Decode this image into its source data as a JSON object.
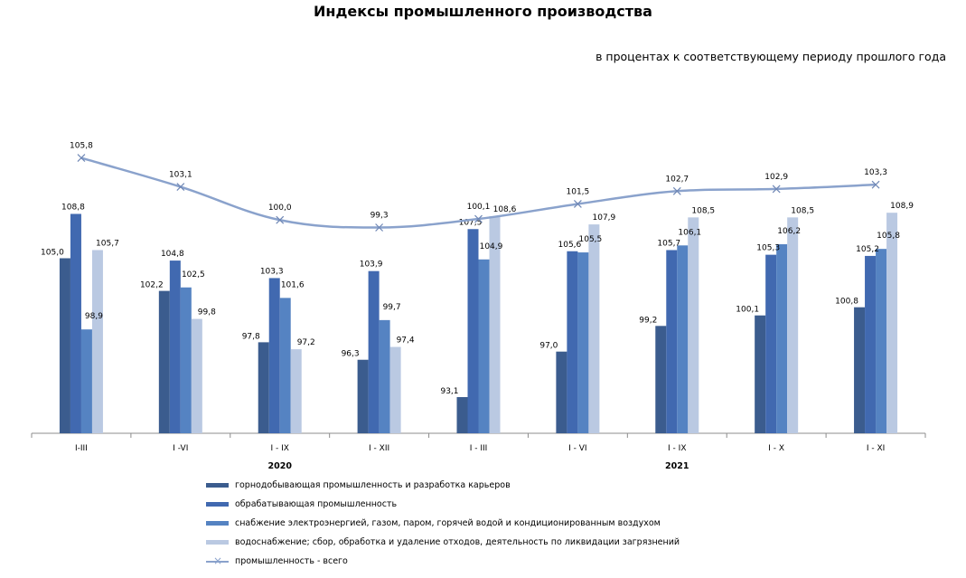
{
  "title": "Индексы промышленного производства",
  "subtitle": "в процентах к соответствующему периоду прошлого года",
  "chart_data": {
    "type": "bar",
    "categories": [
      "I-III",
      "I -VI",
      "I - IX",
      "I - XII",
      "I - III",
      "I - VI",
      "I - IX",
      "I - X",
      "I - XI"
    ],
    "year_labels": [
      {
        "label": "2020",
        "category_index": 2
      },
      {
        "label": "2021",
        "category_index": 6
      }
    ],
    "series": [
      {
        "name": "горнодобывающая промышленность и разработка карьеров",
        "color": "#3b5c8e",
        "values": [
          105.0,
          102.2,
          97.8,
          96.3,
          93.1,
          97.0,
          99.2,
          100.1,
          100.8
        ],
        "labels": [
          "105,0",
          "102,2",
          "97,8",
          "96,3",
          "93,1",
          "97,0",
          "99,2",
          "100,1",
          "100,8"
        ]
      },
      {
        "name": "обрабатывающая промышленность",
        "color": "#4169b0",
        "values": [
          108.8,
          104.8,
          103.3,
          103.9,
          107.5,
          105.6,
          105.7,
          105.3,
          105.2
        ],
        "labels": [
          "108,8",
          "104,8",
          "103,3",
          "103,9",
          "107,5",
          "105,6",
          "105,7",
          "105,3",
          "105,2"
        ]
      },
      {
        "name": "снабжение электроэнергией, газом, паром, горячей водой и  кондиционированным воздухом",
        "color": "#5583c2",
        "values": [
          98.9,
          102.5,
          101.6,
          99.7,
          104.9,
          105.5,
          106.1,
          106.2,
          105.8
        ],
        "labels": [
          "98,9",
          "102,5",
          "101,6",
          "99,7",
          "104,9",
          "105,5",
          "106,1",
          "106,2",
          "105,8"
        ]
      },
      {
        "name": "водоснабжение; сбор, обработка и удаление отходов, деятельность по ликвидации загрязнений",
        "color": "#bac9e2",
        "values": [
          105.7,
          99.8,
          97.2,
          97.4,
          108.6,
          107.9,
          108.5,
          108.5,
          108.9
        ],
        "labels": [
          "105,7",
          "99,8",
          "97,2",
          "97,4",
          "108,6",
          "107,9",
          "108,5",
          "108,5",
          "108,9"
        ]
      }
    ],
    "line_series": {
      "name": "промышленность - всего",
      "color": "#8aa2cc",
      "values": [
        105.8,
        103.1,
        100.0,
        99.3,
        100.1,
        101.5,
        102.7,
        102.9,
        103.3
      ],
      "labels": [
        "105,8",
        "103,1",
        "100,0",
        "99,3",
        "100,1",
        "101,5",
        "102,7",
        "102,9",
        "103,3"
      ]
    },
    "grid": false,
    "legend_position": "bottom"
  }
}
